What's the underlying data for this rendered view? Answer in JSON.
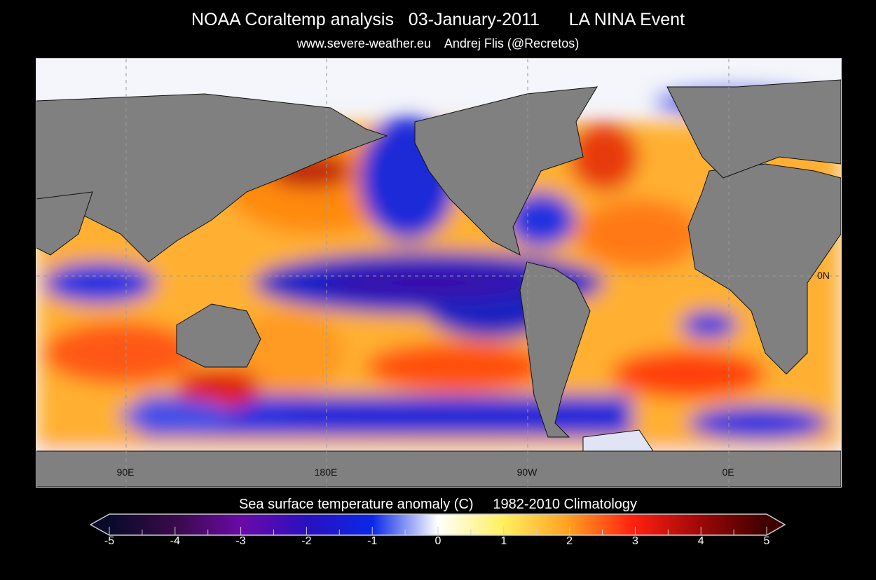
{
  "header": {
    "title": "NOAA Coraltemp analysis   03-January-2011      LA NINA Event",
    "subtitle": "www.severe-weather.eu    Andrej Flis (@Recretos)"
  },
  "map": {
    "type": "sea surface temperature anomaly map",
    "projection": "equirectangular",
    "longitude_labels": [
      "90E",
      "180E",
      "90W",
      "0E"
    ],
    "latitude_labels": [
      "0N"
    ],
    "land_color": "#808080",
    "gridlines": "dashed"
  },
  "colorbar": {
    "title": "Sea surface temperature anomaly (C)     1982-2010 Climatology",
    "range": [
      -5,
      5
    ],
    "tick_labels": [
      "-5",
      "-4",
      "-3",
      "-2",
      "-1",
      "0",
      "1",
      "2",
      "3",
      "4",
      "5"
    ],
    "colors": [
      "#0a0a2a",
      "#3a0a4a",
      "#6a0aa8",
      "#2a10c0",
      "#0a28e8",
      "#ffffff",
      "#fff060",
      "#ffa020",
      "#ff2010",
      "#a00808",
      "#400000"
    ],
    "extend": "both"
  }
}
